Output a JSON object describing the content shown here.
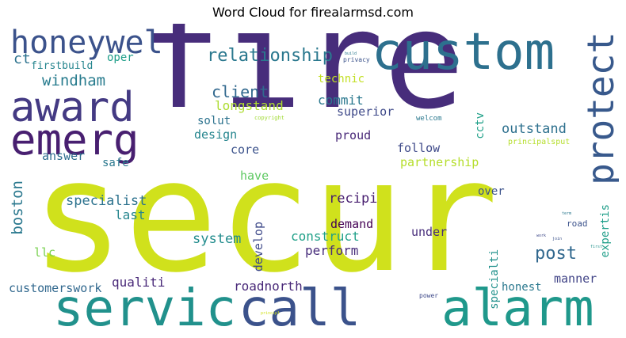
{
  "title": "Word Cloud for firealarmsd.com",
  "words": [
    {
      "text": "fire",
      "color": "#472d7b"
    },
    {
      "text": "secur",
      "color": "#d0e11c"
    },
    {
      "text": "custom",
      "color": "#2d708e"
    },
    {
      "text": "servic",
      "color": "#21918c"
    },
    {
      "text": "call",
      "color": "#3b528b"
    },
    {
      "text": "alarm",
      "color": "#1f988b"
    },
    {
      "text": "honeywel",
      "color": "#3b528b"
    },
    {
      "text": "award",
      "color": "#443a83"
    },
    {
      "text": "emerg",
      "color": "#481f70"
    },
    {
      "text": "protect",
      "color": "#38598c"
    },
    {
      "text": "relationship",
      "color": "#2a788e"
    },
    {
      "text": "ct",
      "color": "#2c728e"
    },
    {
      "text": "firstbuild",
      "color": "#25858e"
    },
    {
      "text": "oper",
      "color": "#1f9e89"
    },
    {
      "text": "windham",
      "color": "#287c8e"
    },
    {
      "text": "client",
      "color": "#31688e"
    },
    {
      "text": "technic",
      "color": "#c2df23"
    },
    {
      "text": "longstand",
      "color": "#addc30"
    },
    {
      "text": "commit",
      "color": "#2a788e"
    },
    {
      "text": "superior",
      "color": "#3e4989"
    },
    {
      "text": "solut",
      "color": "#2c728e"
    },
    {
      "text": "design",
      "color": "#25858e"
    },
    {
      "text": "cctv",
      "color": "#1fa088"
    },
    {
      "text": "proud",
      "color": "#482878"
    },
    {
      "text": "outstand",
      "color": "#2d708e"
    },
    {
      "text": "core",
      "color": "#3b528b"
    },
    {
      "text": "follow",
      "color": "#3e4989"
    },
    {
      "text": "answer",
      "color": "#2e6e8e"
    },
    {
      "text": "safe",
      "color": "#2a788e"
    },
    {
      "text": "partnership",
      "color": "#b5de2b"
    },
    {
      "text": "have",
      "color": "#5ec962"
    },
    {
      "text": "boston",
      "color": "#2a788e"
    },
    {
      "text": "specialist",
      "color": "#2c728e"
    },
    {
      "text": "recipi",
      "color": "#481f70"
    },
    {
      "text": "over",
      "color": "#3b528b"
    },
    {
      "text": "last",
      "color": "#25858e"
    },
    {
      "text": "demand",
      "color": "#440154"
    },
    {
      "text": "system",
      "color": "#228c8d"
    },
    {
      "text": "develop",
      "color": "#3e4989"
    },
    {
      "text": "construct",
      "color": "#1fa088"
    },
    {
      "text": "under",
      "color": "#472d7b"
    },
    {
      "text": "post",
      "color": "#31688e"
    },
    {
      "text": "llc",
      "color": "#7ad151"
    },
    {
      "text": "perform",
      "color": "#472d7b"
    },
    {
      "text": "specialti",
      "color": "#21918c"
    },
    {
      "text": "expertis",
      "color": "#1f9e89"
    },
    {
      "text": "qualiti",
      "color": "#482878"
    },
    {
      "text": "roadnorth",
      "color": "#482878"
    },
    {
      "text": "manner",
      "color": "#414487"
    },
    {
      "text": "honest",
      "color": "#2a788e"
    },
    {
      "text": "customerswork",
      "color": "#31688e"
    },
    {
      "text": "road",
      "color": "#3b528b"
    },
    {
      "text": "welcom",
      "color": "#2a788e"
    },
    {
      "text": "principalsput",
      "color": "#b5de2b"
    },
    {
      "text": "copyright",
      "color": "#a2da37"
    },
    {
      "text": "power",
      "color": "#3e4989"
    },
    {
      "text": "build",
      "color": "#2a788e"
    },
    {
      "text": "privacy",
      "color": "#3b528b"
    },
    {
      "text": "principl",
      "color": "#d0e11c"
    },
    {
      "text": "work",
      "color": "#3e4989"
    },
    {
      "text": "join",
      "color": "#3b528b"
    },
    {
      "text": "first",
      "color": "#21918c"
    },
    {
      "text": "term",
      "color": "#2a788e"
    }
  ]
}
